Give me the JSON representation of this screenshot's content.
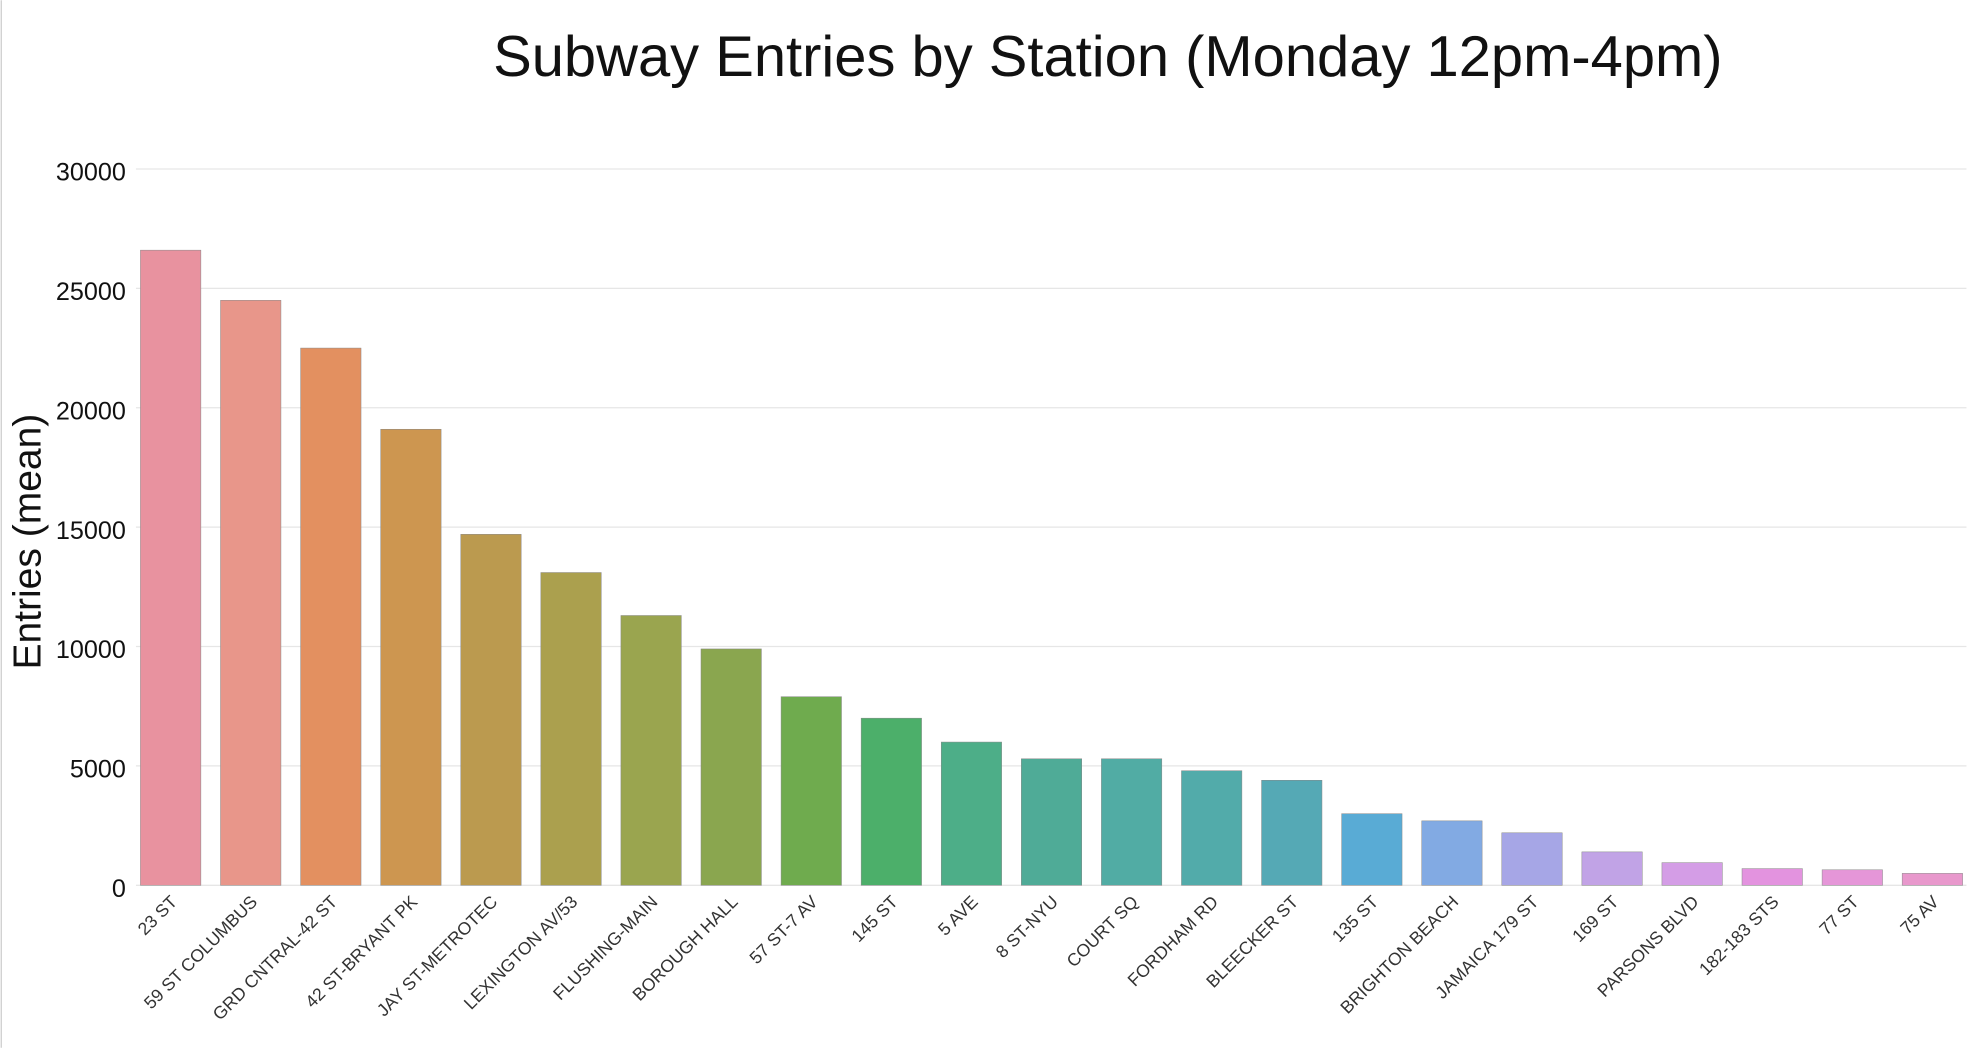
{
  "chart_data": {
    "type": "bar",
    "title": "Subway Entries by Station (Monday 12pm-4pm)",
    "y_label": "Entries (mean)",
    "categories": [
      "23 ST",
      "59 ST COLUMBUS",
      "GRD CNTRAL-42 ST",
      "42 ST-BRYANT PK",
      "JAY ST-METROTEC",
      "LEXINGTON AV/53",
      "FLUSHING-MAIN",
      "BOROUGH HALL",
      "57 ST-7 AV",
      "145 ST",
      "5 AVE",
      "8 ST-NYU",
      "COURT SQ",
      "FORDHAM RD",
      "BLEECKER ST",
      "135 ST",
      "BRIGHTON BEACH",
      "JAMAICA 179 ST",
      "169 ST",
      "PARSONS BLVD",
      "182-183 STS",
      "77 ST",
      "75 AV"
    ],
    "values": [
      26600,
      24500,
      22500,
      19100,
      14700,
      13100,
      11300,
      9900,
      7900,
      7000,
      6000,
      5300,
      5300,
      4800,
      4400,
      3000,
      2700,
      2200,
      1400,
      950,
      700,
      650,
      500
    ],
    "colors": [
      "#e8929f",
      "#e8968a",
      "#e39060",
      "#cd9650",
      "#bb9a4f",
      "#aba04e",
      "#9aa54f",
      "#8aa64f",
      "#6fab4e",
      "#4caf6a",
      "#4dae88",
      "#4fab97",
      "#51aca4",
      "#52abaa",
      "#55a9b5",
      "#59abd5",
      "#82aae3",
      "#a6a6e6",
      "#c1a3e6",
      "#d49de6",
      "#e393df",
      "#e596d8",
      "#e898cc"
    ],
    "ylim": [
      0,
      30000
    ],
    "yticks": [
      0,
      5000,
      10000,
      15000,
      20000,
      25000,
      30000
    ],
    "grid": true
  }
}
